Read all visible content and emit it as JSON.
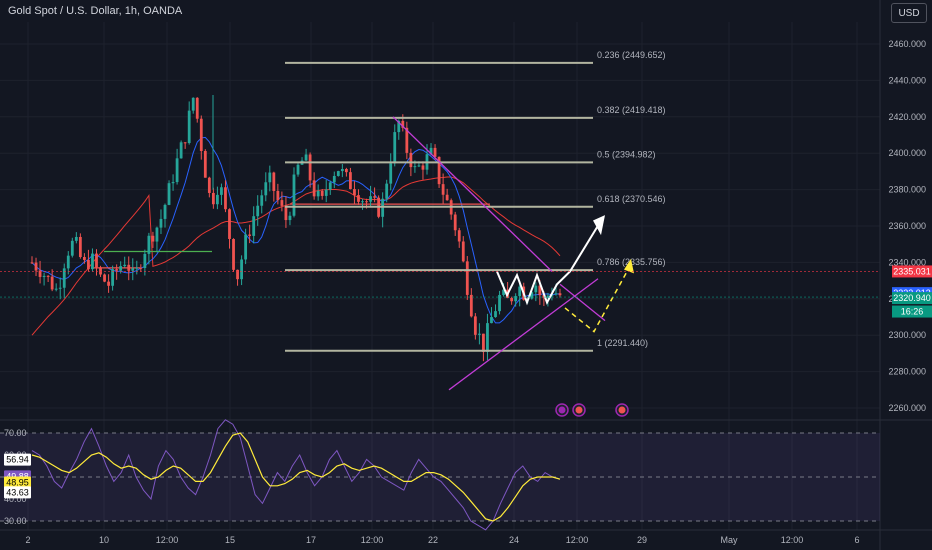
{
  "header": {
    "title": "Gold Spot / U.S. Dollar, 1h, OANDA",
    "currency": "USD"
  },
  "colors": {
    "background": "#131722",
    "up": "#26a69a",
    "down": "#ef5350",
    "fib": "#b2b5a0",
    "ma_blue": "#2962ff",
    "ma_red": "#e53935",
    "trend_violet": "#c13cd6",
    "rsi_line": "#7e57c2",
    "rsi_ma": "#ffeb3b",
    "arrow_white": "#ffffff",
    "arrow_yellow": "#ffeb3b"
  },
  "chart_data": [
    {
      "type": "candlestick",
      "title": "Gold Spot / U.S. Dollar, 1h, OANDA",
      "y_axis": {
        "ticks": [
          "2460.000",
          "2440.000",
          "2420.000",
          "2400.000",
          "2380.000",
          "2360.000",
          "2340.000",
          "2320.000",
          "2300.000",
          "2280.000",
          "2260.000"
        ],
        "ylim": [
          2250,
          2470
        ]
      },
      "x_axis": {
        "ticks": [
          "2",
          "10",
          "12:00",
          "15",
          "17",
          "12:00",
          "22",
          "24",
          "12:00",
          "29",
          "May",
          "12:00",
          "6"
        ]
      },
      "series_path": [
        2340,
        2336,
        2330,
        2324,
        2345,
        2352,
        2338,
        2342,
        2332,
        2328,
        2336,
        2342,
        2330,
        2345,
        2355,
        2362,
        2378,
        2395,
        2410,
        2432,
        2400,
        2372,
        2385,
        2360,
        2330,
        2350,
        2365,
        2378,
        2385,
        2372,
        2362,
        2390,
        2398,
        2380,
        2372,
        2388,
        2392,
        2385,
        2380,
        2374,
        2372,
        2368,
        2395,
        2418,
        2402,
        2390,
        2395,
        2400,
        2382,
        2370,
        2355,
        2330,
        2305,
        2294,
        2310,
        2322,
        2318,
        2328,
        2322,
        2330,
        2318,
        2325,
        2322
      ],
      "fib_levels": [
        {
          "ratio": "0.236",
          "value": 2449.652,
          "label": "0.236 (2449.652)"
        },
        {
          "ratio": "0.382",
          "value": 2419.418,
          "label": "0.382 (2419.418)"
        },
        {
          "ratio": "0.5",
          "value": 2394.982,
          "label": "0.5 (2394.982)"
        },
        {
          "ratio": "0.618",
          "value": 2370.546,
          "label": "0.618 (2370.546)"
        },
        {
          "ratio": "0.786",
          "value": 2335.756,
          "label": "0.786 (2335.756)"
        },
        {
          "ratio": "1",
          "value": 2291.44,
          "label": "1 (2291.440)"
        }
      ],
      "price_tags": [
        {
          "value": "2335.031",
          "color": "#f23645",
          "price": 2335.031
        },
        {
          "value": "2322.013",
          "color": "#2962ff",
          "price": 2322.013
        },
        {
          "value": "2320.940",
          "color": "#089981",
          "price": 2320.94
        },
        {
          "value": "16:26",
          "color": "#089981",
          "price": 2313.0
        }
      ]
    },
    {
      "type": "line",
      "name": "RSI",
      "y_axis": {
        "ticks": [
          "70.00",
          "60.00",
          "50.00",
          "40.00",
          "30.00"
        ],
        "ylim": [
          25,
          75
        ]
      },
      "rsi_values": [
        62,
        60,
        55,
        48,
        45,
        52,
        58,
        66,
        72,
        64,
        55,
        48,
        52,
        60,
        50,
        44,
        40,
        55,
        62,
        58,
        50,
        45,
        42,
        50,
        60,
        72,
        76,
        74,
        68,
        55,
        42,
        38,
        45,
        52,
        48,
        55,
        60,
        52,
        46,
        50,
        58,
        62,
        55,
        48,
        52,
        58,
        55,
        50,
        48,
        46,
        44,
        52,
        58,
        54,
        50,
        48,
        44,
        40,
        36,
        30,
        28,
        26,
        30,
        38,
        45,
        52,
        55,
        50,
        48,
        52,
        50,
        49
      ],
      "rsi_ma_values": [
        60,
        59,
        57,
        55,
        53,
        52,
        54,
        57,
        60,
        61,
        59,
        56,
        54,
        55,
        54,
        51,
        49,
        50,
        53,
        55,
        54,
        51,
        48,
        48,
        52,
        58,
        64,
        69,
        70,
        66,
        58,
        50,
        46,
        46,
        47,
        49,
        52,
        53,
        51,
        50,
        52,
        55,
        56,
        54,
        53,
        54,
        55,
        54,
        52,
        50,
        48,
        48,
        50,
        52,
        52,
        51,
        49,
        46,
        43,
        39,
        35,
        31,
        30,
        32,
        36,
        41,
        46,
        49,
        50,
        50,
        50,
        49
      ],
      "tags": [
        {
          "value": "56.94",
          "color": "#ffffff",
          "rsi": 57.9
        },
        {
          "value": "49.88",
          "color": "#7e57c2",
          "rsi": 50.3
        },
        {
          "value": "48.95",
          "color": "#ffeb3b",
          "rsi": 47.5
        },
        {
          "value": "43.63",
          "color": "#ffffff",
          "rsi": 43.0
        }
      ]
    }
  ]
}
